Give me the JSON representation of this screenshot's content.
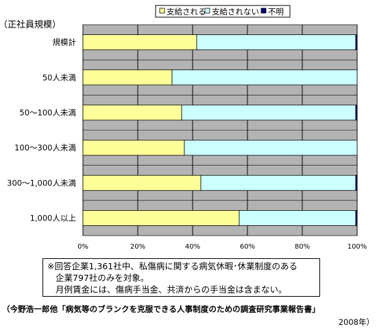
{
  "chart_data": {
    "type": "bar",
    "orientation": "horizontal",
    "stacked": true,
    "title": "",
    "ylabel": "（正社員規模）",
    "xlabel": "",
    "categories": [
      "規模計",
      "50人未満",
      "50～100人未満",
      "100～300人未満",
      "300～1,000人未満",
      "1,000人以上"
    ],
    "series": [
      {
        "name": "支給される",
        "values": [
          41.5,
          32.5,
          36.0,
          37.0,
          43.0,
          57.0
        ],
        "color": "#ffff99"
      },
      {
        "name": "支給されない",
        "values": [
          58.0,
          67.5,
          63.5,
          63.0,
          56.5,
          42.5
        ],
        "color": "#ccffff"
      },
      {
        "name": "不明",
        "values": [
          0.5,
          0.0,
          0.5,
          0.0,
          0.5,
          0.5
        ],
        "color": "#000080"
      }
    ],
    "x_ticks": [
      "0%",
      "20%",
      "40%",
      "60%",
      "80%",
      "100%"
    ],
    "xlim": [
      0,
      100
    ],
    "grid": true,
    "legend_position": "top",
    "plot_background": "#b3b3b3"
  },
  "note": {
    "line1": "※回答企業1,361社中、私傷病に関する病気休暇･休業制度のある",
    "line2": "企業797社のみを対象。",
    "line3": "月例賃金には、傷病手当金、共済からの手当金は含まない。"
  },
  "source": {
    "text": "（今野浩一郎他「病気等のブランクを克服できる人事制度のための調査研究事業報告書」",
    "year": "2008年）"
  }
}
